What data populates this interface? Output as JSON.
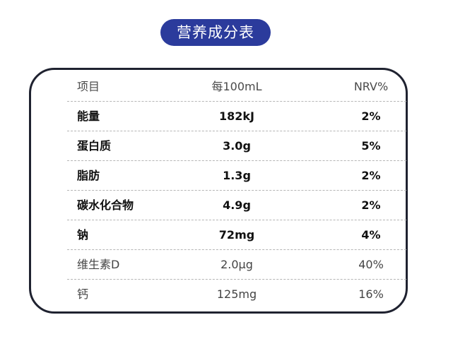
{
  "title": "营养成分表",
  "table": {
    "headers": [
      "项目",
      "每100mL",
      "NRV%"
    ],
    "rows": [
      {
        "name": "能量",
        "amount": "182kJ",
        "nrv": "2%",
        "bold": true
      },
      {
        "name": "蛋白质",
        "amount": "3.0g",
        "nrv": "5%",
        "bold": true
      },
      {
        "name": "脂肪",
        "amount": "1.3g",
        "nrv": "2%",
        "bold": true
      },
      {
        "name": "碳水化合物",
        "amount": "4.9g",
        "nrv": "2%",
        "bold": true
      },
      {
        "name": "钠",
        "amount": "72mg",
        "nrv": "4%",
        "bold": true
      },
      {
        "name": "维生素D",
        "amount": "2.0µg",
        "nrv": "40%",
        "bold": false
      },
      {
        "name": "钙",
        "amount": "125mg",
        "nrv": "16%",
        "bold": false
      }
    ]
  },
  "colors": {
    "title_bg": "#2b3b9c",
    "border": "#1f2230"
  }
}
